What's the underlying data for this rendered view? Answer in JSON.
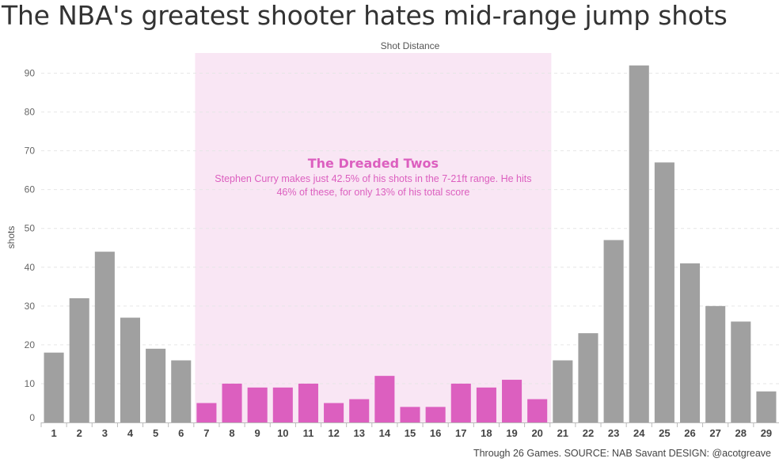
{
  "title": "The NBA's greatest shooter hates mid-range jump shots",
  "source": "Through 26 Games. SOURCE: NAB Savant DESIGN: @acotgreave",
  "colors": {
    "bar_default": "#a0a0a0",
    "bar_highlight": "#dc5fbf",
    "band_fill": "#f9e6f4",
    "annotation": "#dc5fbf"
  },
  "annotation": {
    "title": "The Dreaded Twos",
    "line1": "Stephen Curry makes just 42.5% of his shots in the 7-21ft range. He hits",
    "line2": "46% of these, for only 13% of his total score",
    "range": [
      7,
      20
    ]
  },
  "chart_data": {
    "type": "bar",
    "title": "The NBA's greatest shooter hates mid-range jump shots",
    "xlabel": "Shot Distance",
    "ylabel": "shots",
    "ylim": [
      0,
      95
    ],
    "yticks": [
      0,
      10,
      20,
      30,
      40,
      50,
      60,
      70,
      80,
      90
    ],
    "grid": true,
    "categories": [
      "1",
      "2",
      "3",
      "4",
      "5",
      "6",
      "7",
      "8",
      "9",
      "10",
      "11",
      "12",
      "13",
      "14",
      "15",
      "16",
      "17",
      "18",
      "19",
      "20",
      "21",
      "22",
      "23",
      "24",
      "25",
      "26",
      "27",
      "28",
      "29"
    ],
    "values": [
      18,
      32,
      44,
      27,
      19,
      16,
      5,
      10,
      9,
      9,
      10,
      5,
      6,
      12,
      4,
      4,
      10,
      9,
      11,
      6,
      16,
      23,
      47,
      92,
      67,
      41,
      30,
      26,
      8
    ],
    "highlight_range": [
      7,
      20
    ]
  }
}
